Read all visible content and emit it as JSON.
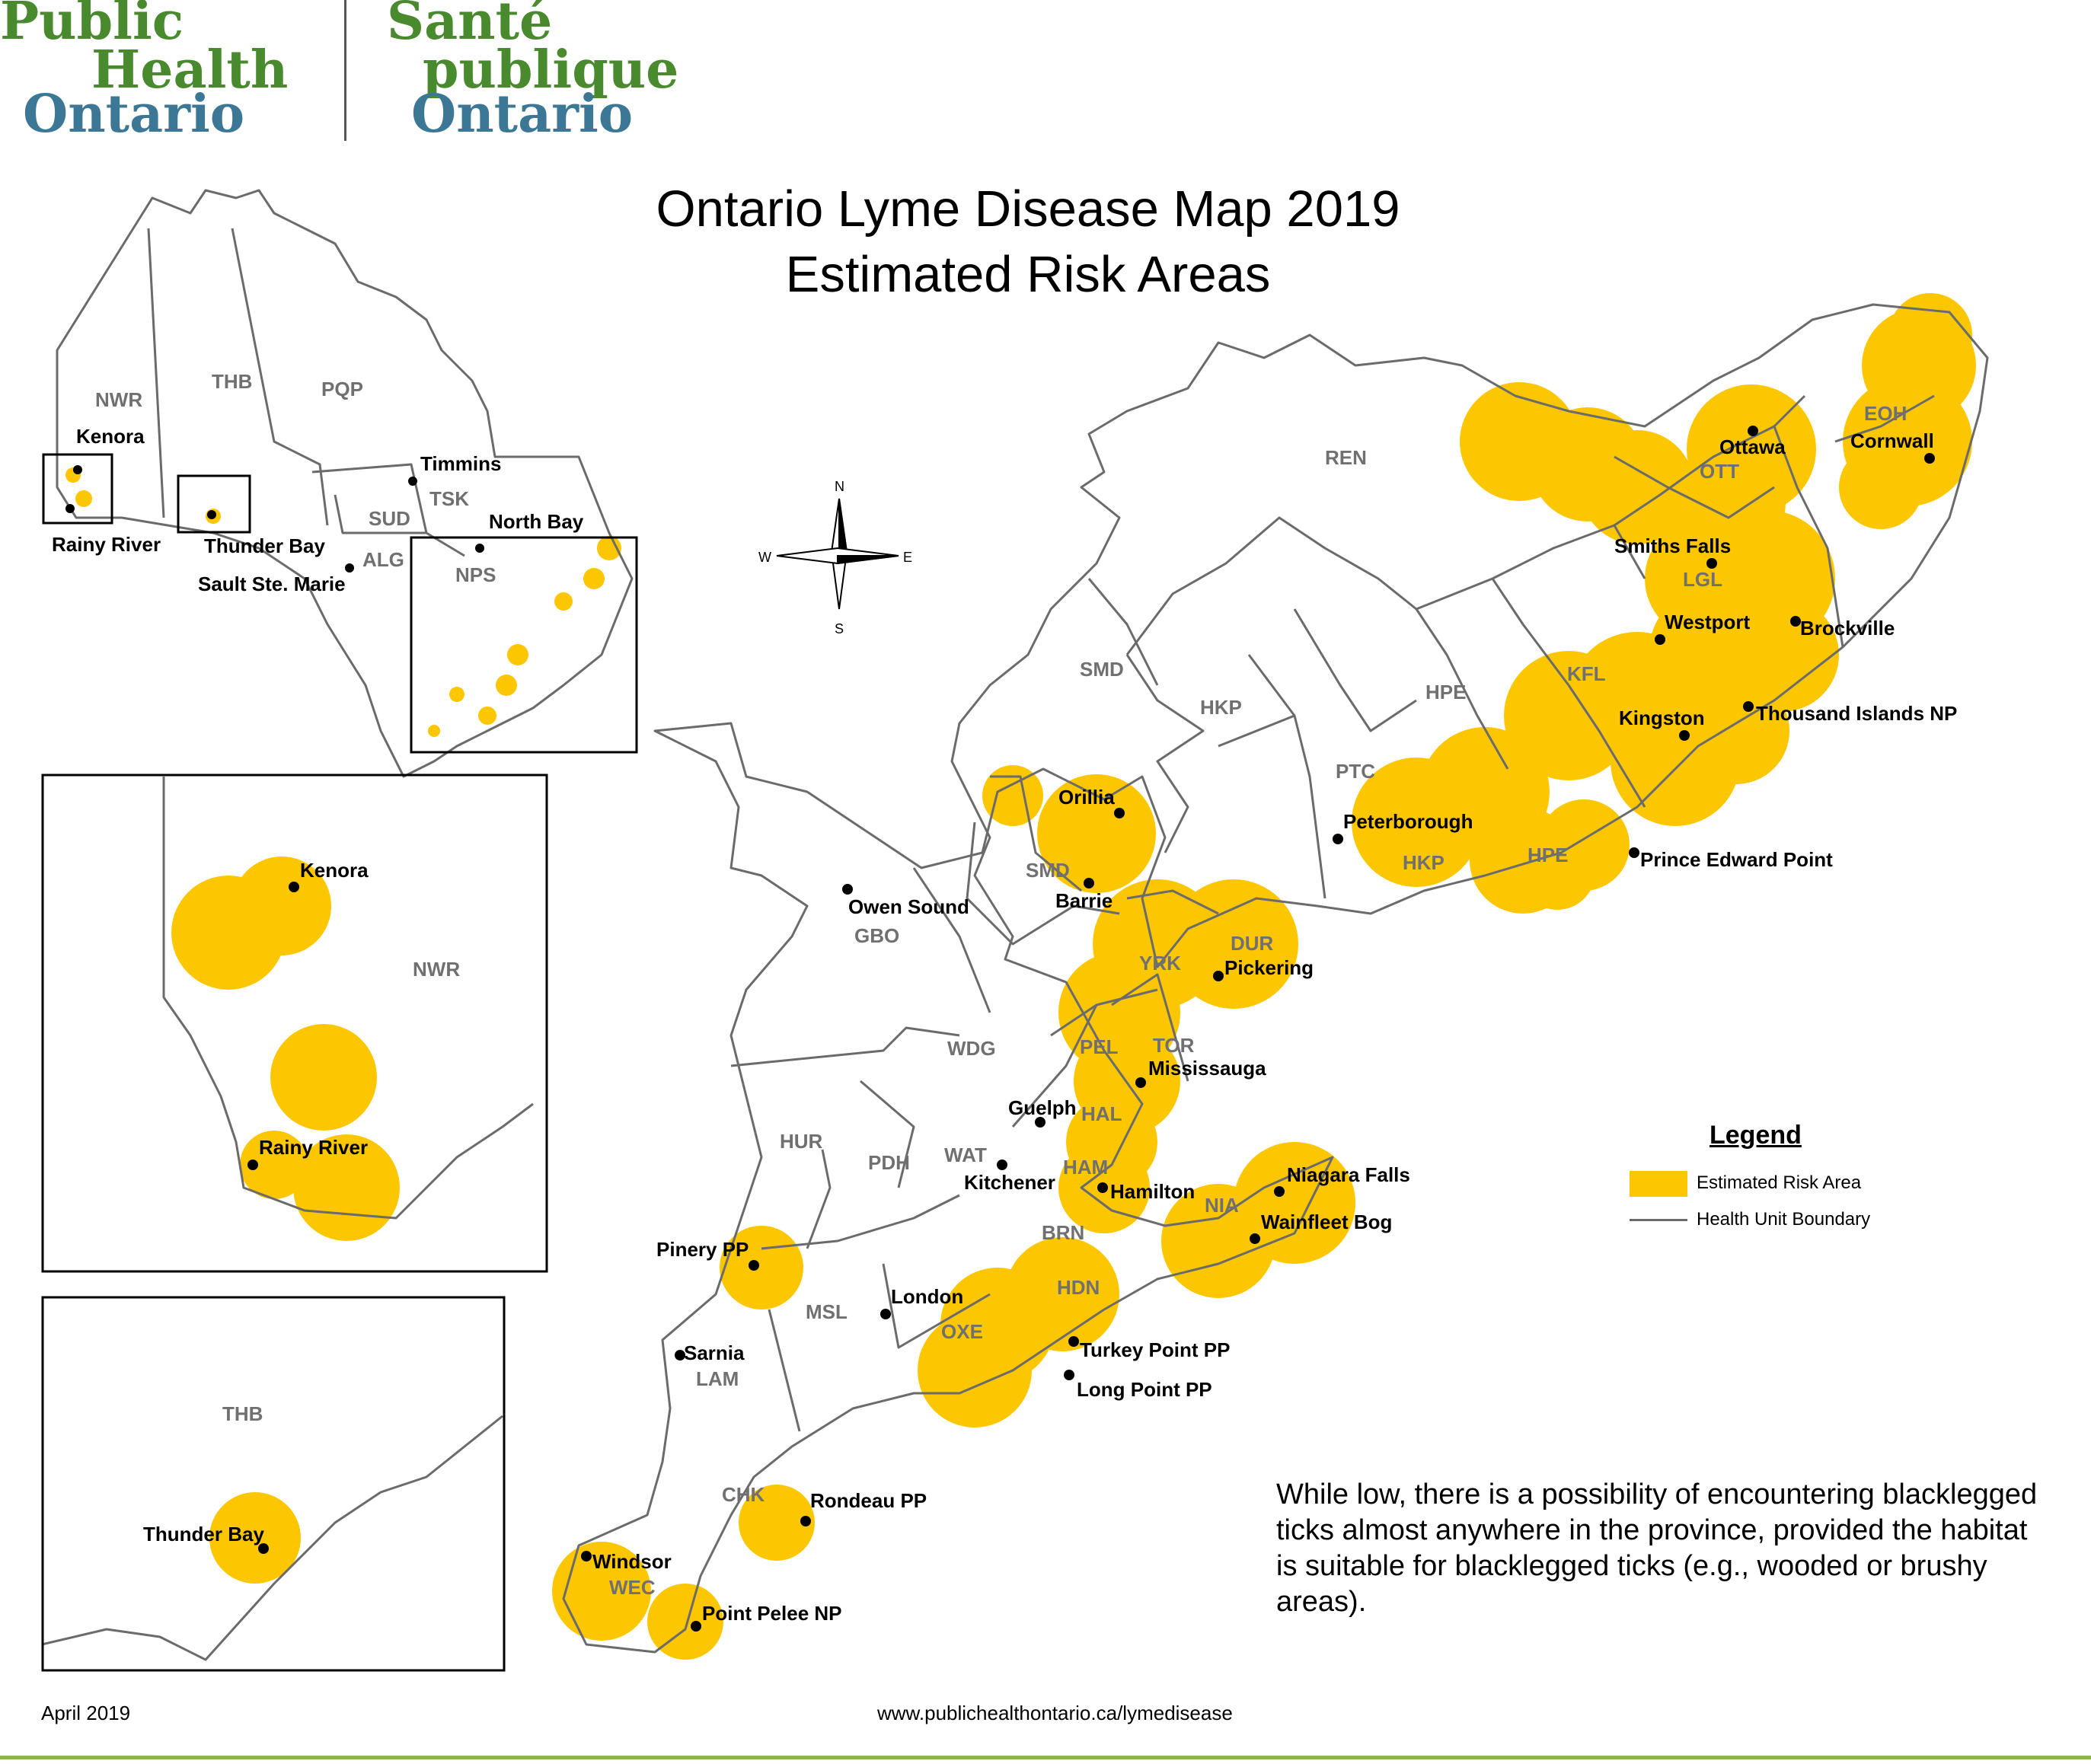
{
  "logo": {
    "en": [
      "Public",
      "Health",
      "Ontario"
    ],
    "fr": [
      "Santé",
      "publique",
      "Ontario"
    ]
  },
  "title": [
    "Ontario Lyme Disease Map 2019",
    "Estimated Risk Areas"
  ],
  "compass": {
    "n": "N",
    "s": "S",
    "e": "E",
    "w": "W"
  },
  "health_units": {
    "nwr": "NWR",
    "thb": "THB",
    "pqp": "PQP",
    "sud": "SUD",
    "tsk": "TSK",
    "alg": "ALG",
    "nps": "NPS",
    "ren": "REN",
    "eoh": "EOH",
    "ott": "OTT",
    "lgl": "LGL",
    "kfl": "KFL",
    "hpe": "HPE",
    "hpe2": "HPE",
    "smd": "SMD",
    "smd2": "SMD",
    "hkp": "HKP",
    "hkp2": "HKP",
    "ptc": "PTC",
    "yrk": "YRK",
    "dur": "DUR",
    "pel": "PEL",
    "tor": "TOR",
    "hal": "HAL",
    "ham": "HAM",
    "nia": "NIA",
    "gbo": "GBO",
    "wdg": "WDG",
    "hur": "HUR",
    "pdh": "PDH",
    "wat": "WAT",
    "brn": "BRN",
    "hdn": "HDN",
    "oxe": "OXE",
    "msl": "MSL",
    "lam": "LAM",
    "chk": "CHK",
    "wec": "WEC"
  },
  "places": {
    "kenora": "Kenora",
    "rainy_river": "Rainy River",
    "thunder_bay": "Thunder Bay",
    "sault": "Sault Ste. Marie",
    "timmins": "Timmins",
    "north_bay": "North Bay",
    "ottawa": "Ottawa",
    "cornwall": "Cornwall",
    "smiths_falls": "Smiths Falls",
    "westport": "Westport",
    "brockville": "Brockville",
    "kingston": "Kingston",
    "thousand_islands": "Thousand Islands NP",
    "prince_edward": "Prince Edward Point",
    "peterborough": "Peterborough",
    "orillia": "Orillia",
    "barrie": "Barrie",
    "owen_sound": "Owen Sound",
    "pickering": "Pickering",
    "mississauga": "Mississauga",
    "guelph": "Guelph",
    "kitchener": "Kitchener",
    "hamilton": "Hamilton",
    "niagara_falls": "Niagara Falls",
    "wainfleet": "Wainfleet Bog",
    "pinery": "Pinery PP",
    "london": "London",
    "sarnia": "Sarnia",
    "turkey_point": "Turkey Point PP",
    "long_point": "Long Point PP",
    "rondeau": "Rondeau PP",
    "windsor": "Windsor",
    "point_pelee": "Point Pelee NP"
  },
  "legend": {
    "title": "Legend",
    "risk": "Estimated Risk Area",
    "boundary": "Health Unit Boundary"
  },
  "note": "While low, there is a possibility of encountering blacklegged ticks almost anywhere in the province, provided the habitat is suitable for blacklegged ticks (e.g., wooded or brushy areas).",
  "footer": {
    "date": "April 2019",
    "url": "www.publichealthontario.ca/lymedisease"
  },
  "colors": {
    "risk_area": "#fcc600",
    "boundary": "#6b6b6b",
    "logo_green": "#4a8a2f",
    "logo_blue": "#3c7896"
  }
}
